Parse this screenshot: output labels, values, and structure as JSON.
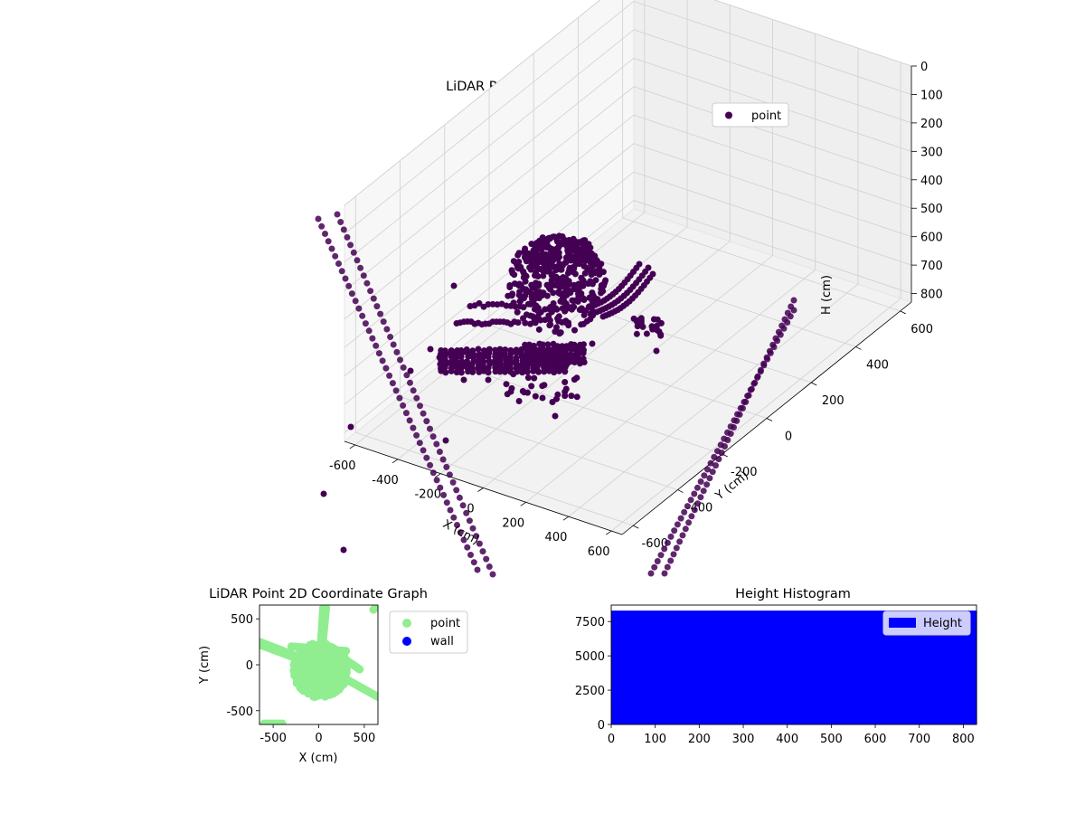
{
  "chart_data": [
    {
      "type": "scatter",
      "title": "LiDAR Point 3D Coordinate Graph",
      "xlabel": "X (cm)",
      "ylabel": "Y (cm)",
      "zlabel": "H (cm)",
      "xticks": [
        "-600",
        "-400",
        "-200",
        "0",
        "200",
        "400",
        "600"
      ],
      "yticks": [
        "-600",
        "-400",
        "-200",
        "0",
        "200",
        "400",
        "600"
      ],
      "zticks": [
        "0",
        "100",
        "200",
        "300",
        "400",
        "500",
        "600",
        "700",
        "800"
      ],
      "xlim": [
        -650,
        650
      ],
      "ylim": [
        -650,
        650
      ],
      "zlim": [
        0,
        830
      ],
      "zaxis_inverted": true,
      "legend": {
        "entries": [
          {
            "label": "point",
            "color": "#440154"
          }
        ],
        "position": "top-right"
      },
      "series": [
        {
          "name": "point",
          "color": "#440154"
        }
      ]
    },
    {
      "type": "scatter",
      "title": "LiDAR Point 2D Coordinate Graph",
      "xlabel": "X (cm)",
      "ylabel": "Y (cm)",
      "xticks": [
        "-500",
        "0",
        "500"
      ],
      "yticks": [
        "-500",
        "0",
        "500"
      ],
      "xlim": [
        -650,
        650
      ],
      "ylim": [
        -650,
        650
      ],
      "grid": false,
      "legend": {
        "entries": [
          {
            "label": "point",
            "color": "#90ee90"
          },
          {
            "label": "wall",
            "color": "#0000ff"
          }
        ],
        "position": "outside-right"
      },
      "series": [
        {
          "name": "point",
          "color": "#90ee90"
        },
        {
          "name": "wall",
          "color": "#0000ff",
          "values": []
        }
      ]
    },
    {
      "type": "bar",
      "title": "Height Histogram",
      "xticks": [
        "0",
        "100",
        "200",
        "300",
        "400",
        "500",
        "600",
        "700",
        "800"
      ],
      "yticks": [
        "0",
        "2500",
        "5000",
        "7500"
      ],
      "xlim": [
        0,
        830
      ],
      "ylim": [
        0,
        8700
      ],
      "bin_range": [
        0,
        830
      ],
      "bin_count": 8300,
      "grid": false,
      "legend": {
        "entries": [
          {
            "label": "Height",
            "color": "#0000ff"
          }
        ],
        "position": "top-right"
      },
      "series": [
        {
          "name": "Height",
          "color": "#0000ff"
        }
      ]
    }
  ]
}
